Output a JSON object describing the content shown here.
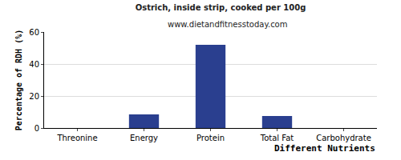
{
  "chart_data": {
    "type": "bar",
    "title": "Ostrich, inside strip, cooked per 100g",
    "subtitle": "www.dietandfitnesstoday.com",
    "x_label": "Different Nutrients",
    "y_label": "Percentage of RDH (%)",
    "categories": [
      "Threonine",
      "Energy",
      "Protein",
      "Total Fat",
      "Carbohydrate"
    ],
    "values": [
      0,
      8.5,
      52,
      7.5,
      0
    ],
    "color": "#2a3f8f",
    "ylim": [
      0,
      60
    ],
    "yticks": [
      0,
      20,
      40,
      60
    ],
    "grid": true
  }
}
